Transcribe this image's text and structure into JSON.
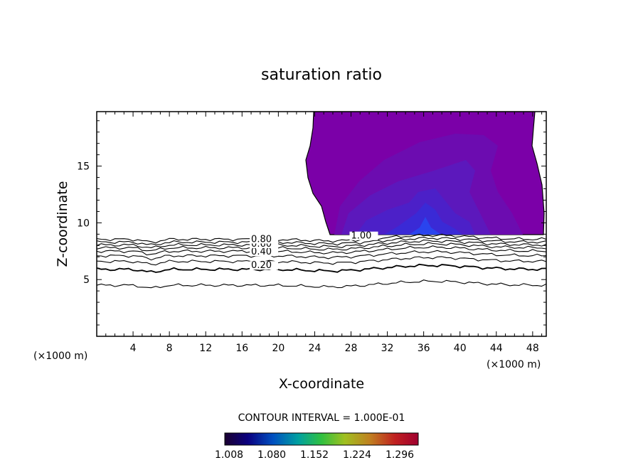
{
  "chart_data": {
    "type": "contour",
    "title": "saturation ratio",
    "xlabel": "X-coordinate",
    "ylabel": "Z-coordinate",
    "x_unit_label_left": "(×1000 m)",
    "x_unit_label_right": "(×1000 m)",
    "xlim": [
      0,
      49.5
    ],
    "ylim": [
      0,
      19.8
    ],
    "x_ticks": [
      4,
      8,
      12,
      16,
      20,
      24,
      28,
      32,
      36,
      40,
      44,
      48
    ],
    "y_ticks": [
      5,
      10,
      15
    ],
    "contour_interval_text": "CONTOUR INTERVAL = 1.000E-01",
    "contour_labels": [
      {
        "text": "0.20",
        "x": 17,
        "y": 6.0
      },
      {
        "text": "0.40",
        "x": 17,
        "y": 7.2
      },
      {
        "text": "0.60",
        "x": 17,
        "y": 7.9
      },
      {
        "text": "0.80",
        "x": 17,
        "y": 8.3
      },
      {
        "text": "1.00",
        "x": 28,
        "y": 8.6
      }
    ],
    "contour_levels": [
      {
        "level": 0.1,
        "z": 4.5
      },
      {
        "level": 0.2,
        "z": 5.9
      },
      {
        "level": 0.3,
        "z": 6.6
      },
      {
        "level": 0.4,
        "z": 7.1
      },
      {
        "level": 0.5,
        "z": 7.5
      },
      {
        "level": 0.6,
        "z": 7.8
      },
      {
        "level": 0.7,
        "z": 8.05
      },
      {
        "level": 0.8,
        "z": 8.3
      },
      {
        "level": 0.9,
        "z": 8.55
      }
    ],
    "supersaturated_region": {
      "x_range": [
        23.5,
        49.5
      ],
      "z_range": [
        8.9,
        19.8
      ],
      "fill_colors": [
        "#7a00a8",
        "#6a10b0",
        "#5a1ac0",
        "#4a20cc",
        "#3a28d8",
        "#2a40f0"
      ]
    },
    "colorbar": {
      "tick_labels": [
        "1.008",
        "1.080",
        "1.152",
        "1.224",
        "1.296"
      ],
      "colors": [
        "#1a0030",
        "#0a0080",
        "#0050c0",
        "#00a0a0",
        "#30c040",
        "#a0c020",
        "#c08020",
        "#c02020",
        "#a00030"
      ]
    }
  }
}
